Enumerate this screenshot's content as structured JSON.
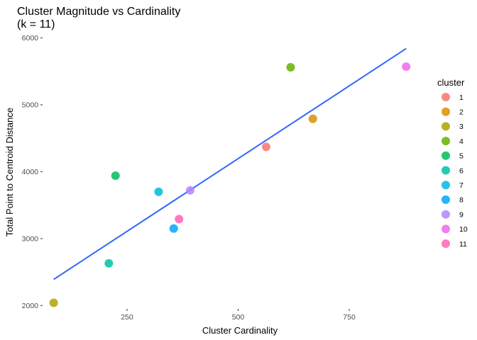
{
  "chart_data": {
    "type": "scatter",
    "title": "Cluster Magnitude vs Cardinality",
    "subtitle": "(k = 11)",
    "xlabel": "Cluster Cardinality",
    "ylabel": "Total Point to Centroid Distance",
    "xlim": [
      60,
      900
    ],
    "ylim": [
      1950,
      6100
    ],
    "x_ticks": [
      250,
      500,
      750
    ],
    "x_tick_labels": [
      "250",
      "500",
      "750"
    ],
    "y_ticks": [
      2000,
      3000,
      4000,
      5000,
      6000
    ],
    "y_tick_labels": [
      "2000",
      "3000",
      "4000",
      "5000",
      "6000"
    ],
    "grid": false,
    "legend": {
      "title": "cluster",
      "placement": "right"
    },
    "series": [
      {
        "name": "1",
        "color": "#F8766D",
        "x": 563,
        "y": 4370
      },
      {
        "name": "2",
        "color": "#DB8E00",
        "x": 668,
        "y": 4790
      },
      {
        "name": "3",
        "color": "#AEA200",
        "x": 85,
        "y": 2040
      },
      {
        "name": "4",
        "color": "#64B200",
        "x": 618,
        "y": 5560
      },
      {
        "name": "5",
        "color": "#00BD5C",
        "x": 224,
        "y": 3940
      },
      {
        "name": "6",
        "color": "#00C1A7",
        "x": 209,
        "y": 2630
      },
      {
        "name": "7",
        "color": "#00BADE",
        "x": 321,
        "y": 3700
      },
      {
        "name": "8",
        "color": "#00A6FF",
        "x": 355,
        "y": 3150
      },
      {
        "name": "9",
        "color": "#B385FF",
        "x": 392,
        "y": 3720
      },
      {
        "name": "10",
        "color": "#EF67EB",
        "x": 878,
        "y": 5570
      },
      {
        "name": "11",
        "color": "#FF63B6",
        "x": 367,
        "y": 3290
      }
    ],
    "trend_line": {
      "type": "linear",
      "color": "#3366FF",
      "x": [
        85,
        878
      ],
      "y": [
        2390,
        5840
      ]
    }
  }
}
